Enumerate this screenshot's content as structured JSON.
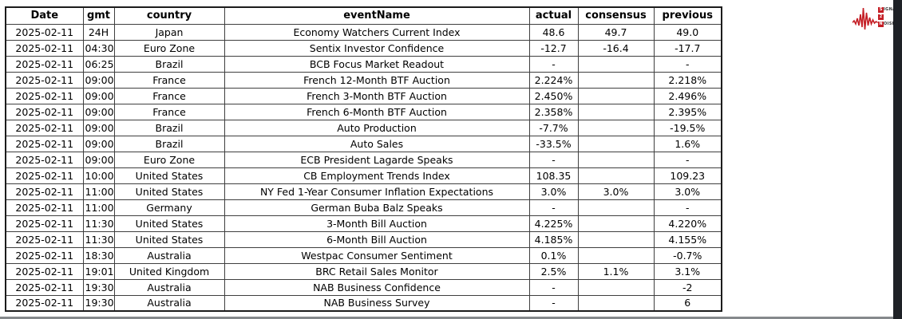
{
  "table": {
    "columns": [
      "Date",
      "gmt",
      "country",
      "eventName",
      "actual",
      "consensus",
      "previous"
    ],
    "rows": [
      [
        "2025-02-11",
        "24H",
        "Japan",
        "Economy Watchers Current Index",
        "48.6",
        "49.7",
        "49.0"
      ],
      [
        "2025-02-11",
        "04:30",
        "Euro Zone",
        "Sentix Investor Confidence",
        "-12.7",
        "-16.4",
        "-17.7"
      ],
      [
        "2025-02-11",
        "06:25",
        "Brazil",
        "BCB Focus Market Readout",
        "-",
        "",
        "-"
      ],
      [
        "2025-02-11",
        "09:00",
        "France",
        "French 12-Month BTF Auction",
        "2.224%",
        "",
        "2.218%"
      ],
      [
        "2025-02-11",
        "09:00",
        "France",
        "French 3-Month BTF Auction",
        "2.450%",
        "",
        "2.496%"
      ],
      [
        "2025-02-11",
        "09:00",
        "France",
        "French 6-Month BTF Auction",
        "2.358%",
        "",
        "2.395%"
      ],
      [
        "2025-02-11",
        "09:00",
        "Brazil",
        "Auto Production",
        "-7.7%",
        "",
        "-19.5%"
      ],
      [
        "2025-02-11",
        "09:00",
        "Brazil",
        "Auto Sales",
        "-33.5%",
        "",
        "1.6%"
      ],
      [
        "2025-02-11",
        "09:00",
        "Euro Zone",
        "ECB President Lagarde Speaks",
        "-",
        "",
        "-"
      ],
      [
        "2025-02-11",
        "10:00",
        "United States",
        "CB Employment Trends Index",
        "108.35",
        "",
        "109.23"
      ],
      [
        "2025-02-11",
        "11:00",
        "United States",
        "NY Fed 1-Year Consumer Inflation Expectations",
        "3.0%",
        "3.0%",
        "3.0%"
      ],
      [
        "2025-02-11",
        "11:00",
        "Germany",
        "German Buba Balz Speaks",
        "-",
        "",
        "-"
      ],
      [
        "2025-02-11",
        "11:30",
        "United States",
        "3-Month Bill Auction",
        "4.225%",
        "",
        "4.220%"
      ],
      [
        "2025-02-11",
        "11:30",
        "United States",
        "6-Month Bill Auction",
        "4.185%",
        "",
        "4.155%"
      ],
      [
        "2025-02-11",
        "18:30",
        "Australia",
        "Westpac Consumer Sentiment",
        "0.1%",
        "",
        "-0.7%"
      ],
      [
        "2025-02-11",
        "19:01",
        "United Kingdom",
        "BRC Retail Sales Monitor",
        "2.5%",
        "1.1%",
        "3.1%"
      ],
      [
        "2025-02-11",
        "19:30",
        "Australia",
        "NAB Business Confidence",
        "-",
        "",
        "-2"
      ],
      [
        "2025-02-11",
        "19:30",
        "Australia",
        "NAB Business Survey",
        "-",
        "",
        "6"
      ]
    ]
  },
  "logo": {
    "line1_boxed": "S",
    "line1_rest": "IGNAL",
    "line2_boxed": "2",
    "line3_boxed": "N",
    "line3_rest": "OISE",
    "accent_color": "#c41e25"
  },
  "colors": {
    "edge_right_strip": "#1e2126",
    "edge_bottom_line": "#85898c",
    "table_border": "#1c1c1c"
  }
}
